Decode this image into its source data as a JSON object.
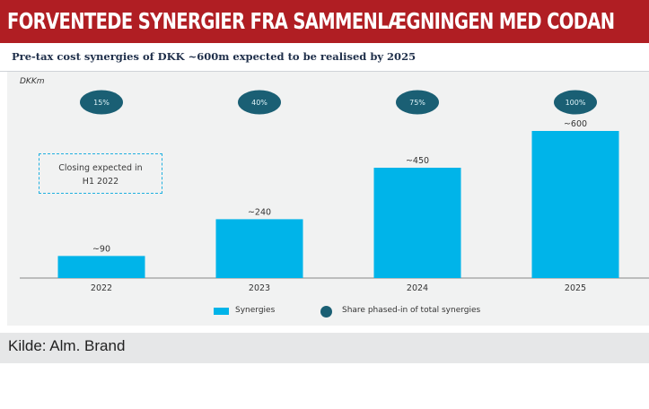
{
  "header": {
    "title": "FORVENTEDE SYNERGIER FRA SAMMENLÆGNINGEN MED CODAN"
  },
  "source": {
    "text": "Kilde: Alm. Brand"
  },
  "colors": {
    "header_bg": "#b01e23",
    "bar": "#00b4e9",
    "circle": "#1a5f74",
    "panel": "#f1f2f2"
  },
  "chart_data": {
    "type": "bar",
    "title": "Pre-tax cost synergies of DKK ~600m expected to be realised by 2025",
    "unit_label": "DKKm",
    "categories": [
      "2022",
      "2023",
      "2024",
      "2025"
    ],
    "series": [
      {
        "name": "Synergies",
        "values": [
          90,
          240,
          450,
          600
        ],
        "labels": [
          "~90",
          "~240",
          "~450",
          "~600"
        ]
      }
    ],
    "share_phased_in": {
      "name": "Share phased-in of total synergies",
      "values": [
        15,
        40,
        75,
        100
      ],
      "labels": [
        "15%",
        "40%",
        "75%",
        "100%"
      ]
    },
    "annotation": {
      "line1": "Closing expected in",
      "line2": "H1 2022"
    },
    "legend": [
      "Synergies",
      "Share phased-in of total synergies"
    ],
    "legend_position": "bottom-center",
    "ylim": [
      0,
      600
    ],
    "grid": false
  }
}
